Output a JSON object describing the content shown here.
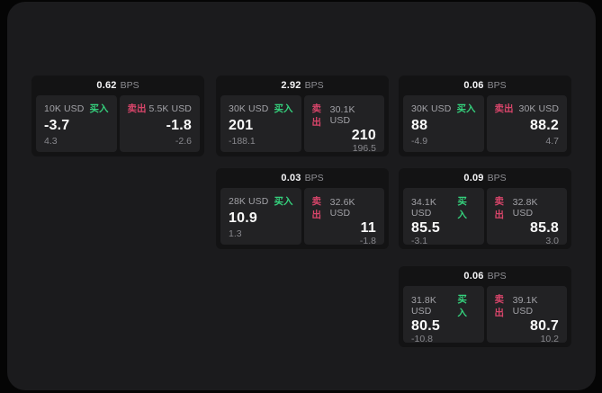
{
  "labels": {
    "bps": "BPS",
    "buy": "买入",
    "sell": "卖出"
  },
  "colors": {
    "page_bg": "#050505",
    "panel_bg": "#1b1b1d",
    "card_bg": "#131314",
    "tile_bg": "#222224",
    "buy_green": "#35d07c",
    "sell_red": "#d8456a"
  },
  "cards": [
    {
      "bps": "0.62",
      "buy": {
        "amount": "10K USD",
        "value": "-3.7",
        "delta": "4.3"
      },
      "sell": {
        "amount": "5.5K USD",
        "value": "-1.8",
        "delta": "-2.6"
      }
    },
    {
      "bps": "2.92",
      "buy": {
        "amount": "30K USD",
        "value": "201",
        "delta": "-188.1"
      },
      "sell": {
        "amount": "30.1K USD",
        "value": "210",
        "delta": "196.5"
      }
    },
    {
      "bps": "0.06",
      "buy": {
        "amount": "30K USD",
        "value": "88",
        "delta": "-4.9"
      },
      "sell": {
        "amount": "30K USD",
        "value": "88.2",
        "delta": "4.7"
      }
    },
    {
      "bps": "0.03",
      "buy": {
        "amount": "28K USD",
        "value": "10.9",
        "delta": "1.3"
      },
      "sell": {
        "amount": "32.6K USD",
        "value": "11",
        "delta": "-1.8"
      }
    },
    {
      "bps": "0.09",
      "buy": {
        "amount": "34.1K USD",
        "value": "85.5",
        "delta": "-3.1"
      },
      "sell": {
        "amount": "32.8K USD",
        "value": "85.8",
        "delta": "3.0"
      }
    },
    {
      "bps": "0.06",
      "buy": {
        "amount": "31.8K USD",
        "value": "80.5",
        "delta": "-10.8"
      },
      "sell": {
        "amount": "39.1K USD",
        "value": "80.7",
        "delta": "10.2"
      }
    }
  ]
}
